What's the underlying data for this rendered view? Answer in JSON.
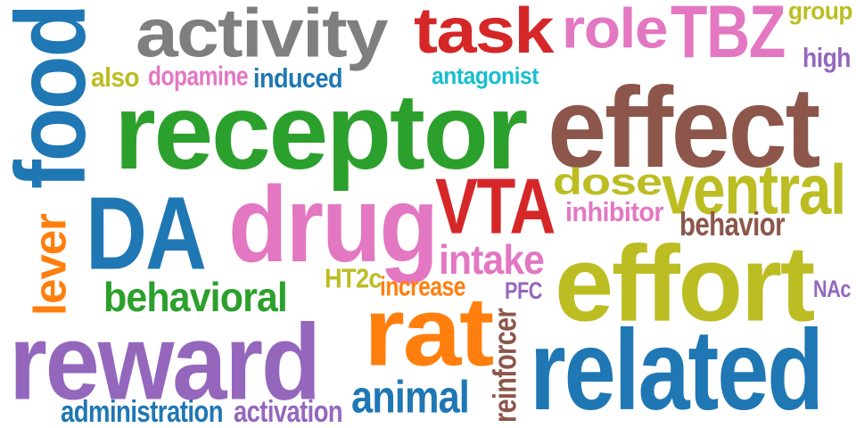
{
  "palette": {
    "blue": "#1f77b4",
    "orange": "#ff7f0e",
    "green": "#2ca02c",
    "red": "#d62728",
    "purple": "#9467bd",
    "brown": "#8c564b",
    "pink": "#e377c2",
    "gray": "#7f7f7f",
    "olive": "#bcbd22",
    "cyan": "#17becf"
  },
  "words": [
    {
      "text": "receptor",
      "color": "#2ca02c"
    },
    {
      "text": "effect",
      "color": "#8c564b"
    },
    {
      "text": "activity",
      "color": "#7f7f7f"
    },
    {
      "text": "task",
      "color": "#d62728"
    },
    {
      "text": "role",
      "color": "#e377c2"
    },
    {
      "text": "TBZ",
      "color": "#e377c2"
    },
    {
      "text": "group",
      "color": "#bcbd22"
    },
    {
      "text": "high",
      "color": "#9467bd"
    },
    {
      "text": "food",
      "color": "#1f77b4"
    },
    {
      "text": "also",
      "color": "#bcbd22"
    },
    {
      "text": "dopamine",
      "color": "#e377c2"
    },
    {
      "text": "induced",
      "color": "#1f77b4"
    },
    {
      "text": "antagonist",
      "color": "#17becf"
    },
    {
      "text": "DA",
      "color": "#1f77b4"
    },
    {
      "text": "drug",
      "color": "#e377c2"
    },
    {
      "text": "VTA",
      "color": "#d62728"
    },
    {
      "text": "dose",
      "color": "#bcbd22"
    },
    {
      "text": "ventral",
      "color": "#bcbd22"
    },
    {
      "text": "inhibitor",
      "color": "#e377c2"
    },
    {
      "text": "behavior",
      "color": "#8c564b"
    },
    {
      "text": "effort",
      "color": "#bcbd22"
    },
    {
      "text": "intake",
      "color": "#e377c2"
    },
    {
      "text": "lever",
      "color": "#ff7f0e"
    },
    {
      "text": "behavioral",
      "color": "#2ca02c"
    },
    {
      "text": "HT2c",
      "color": "#bcbd22"
    },
    {
      "text": "increase",
      "color": "#ff7f0e"
    },
    {
      "text": "PFC",
      "color": "#9467bd"
    },
    {
      "text": "NAc",
      "color": "#9467bd"
    },
    {
      "text": "reward",
      "color": "#9467bd"
    },
    {
      "text": "rat",
      "color": "#ff7f0e"
    },
    {
      "text": "reinforcer",
      "color": "#8c564b"
    },
    {
      "text": "related",
      "color": "#1f77b4"
    },
    {
      "text": "animal",
      "color": "#1f77b4"
    },
    {
      "text": "administration",
      "color": "#1f77b4"
    },
    {
      "text": "activation",
      "color": "#9467bd"
    }
  ]
}
